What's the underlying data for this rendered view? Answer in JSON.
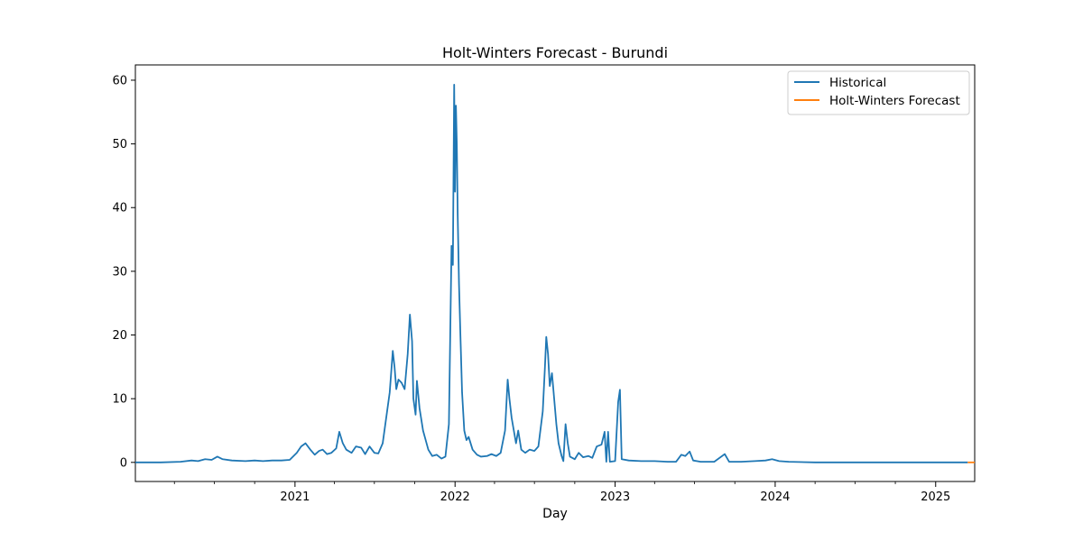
{
  "chart_data": {
    "type": "line",
    "title": "Holt-Winters Forecast - Burundi",
    "xlabel": "Day",
    "ylabel": "",
    "x_ticks": [
      "2021",
      "2022",
      "2023",
      "2024",
      "2025"
    ],
    "x_tick_dates": [
      "2021-01-01",
      "2022-01-01",
      "2023-01-01",
      "2024-01-01",
      "2025-01-01"
    ],
    "y_ticks": [
      0,
      10,
      20,
      30,
      40,
      50,
      60
    ],
    "xlim": [
      "2020-01-03",
      "2025-03-31"
    ],
    "ylim": [
      -3,
      62.4
    ],
    "grid": false,
    "legend_position": "top-right",
    "colors": {
      "historical": "#1f77b4",
      "forecast": "#ff7f0e"
    },
    "series": [
      {
        "name": "Historical",
        "points": [
          [
            "2020-01-03",
            0
          ],
          [
            "2020-03-01",
            0
          ],
          [
            "2020-04-15",
            0.1
          ],
          [
            "2020-05-10",
            0.3
          ],
          [
            "2020-05-25",
            0.2
          ],
          [
            "2020-06-10",
            0.5
          ],
          [
            "2020-06-25",
            0.4
          ],
          [
            "2020-07-08",
            0.9
          ],
          [
            "2020-07-20",
            0.5
          ],
          [
            "2020-08-10",
            0.3
          ],
          [
            "2020-09-10",
            0.2
          ],
          [
            "2020-10-01",
            0.3
          ],
          [
            "2020-10-20",
            0.2
          ],
          [
            "2020-11-10",
            0.3
          ],
          [
            "2020-12-01",
            0.3
          ],
          [
            "2020-12-20",
            0.4
          ],
          [
            "2021-01-05",
            1.5
          ],
          [
            "2021-01-15",
            2.5
          ],
          [
            "2021-01-25",
            3.0
          ],
          [
            "2021-02-05",
            2.0
          ],
          [
            "2021-02-15",
            1.2
          ],
          [
            "2021-02-25",
            1.8
          ],
          [
            "2021-03-05",
            2.0
          ],
          [
            "2021-03-15",
            1.3
          ],
          [
            "2021-03-25",
            1.5
          ],
          [
            "2021-04-05",
            2.2
          ],
          [
            "2021-04-12",
            4.8
          ],
          [
            "2021-04-20",
            3.0
          ],
          [
            "2021-04-28",
            2.0
          ],
          [
            "2021-05-10",
            1.5
          ],
          [
            "2021-05-20",
            2.5
          ],
          [
            "2021-06-01",
            2.3
          ],
          [
            "2021-06-10",
            1.3
          ],
          [
            "2021-06-20",
            2.5
          ],
          [
            "2021-07-01",
            1.5
          ],
          [
            "2021-07-10",
            1.4
          ],
          [
            "2021-07-20",
            3.0
          ],
          [
            "2021-07-28",
            7.0
          ],
          [
            "2021-08-05",
            11.0
          ],
          [
            "2021-08-12",
            17.5
          ],
          [
            "2021-08-16",
            15.0
          ],
          [
            "2021-08-20",
            11.5
          ],
          [
            "2021-08-25",
            13.0
          ],
          [
            "2021-09-01",
            12.5
          ],
          [
            "2021-09-08",
            11.5
          ],
          [
            "2021-09-15",
            17.0
          ],
          [
            "2021-09-20",
            23.2
          ],
          [
            "2021-09-25",
            19.0
          ],
          [
            "2021-09-28",
            10.0
          ],
          [
            "2021-10-03",
            7.5
          ],
          [
            "2021-10-06",
            12.8
          ],
          [
            "2021-10-12",
            8.5
          ],
          [
            "2021-10-20",
            5.0
          ],
          [
            "2021-11-01",
            2.0
          ],
          [
            "2021-11-10",
            1.0
          ],
          [
            "2021-11-20",
            1.2
          ],
          [
            "2021-12-01",
            0.6
          ],
          [
            "2021-12-10",
            0.9
          ],
          [
            "2021-12-18",
            6.0
          ],
          [
            "2021-12-24",
            34.0
          ],
          [
            "2021-12-27",
            31.0
          ],
          [
            "2021-12-30",
            59.3
          ],
          [
            "2022-01-01",
            42.5
          ],
          [
            "2022-01-03",
            56.0
          ],
          [
            "2022-01-05",
            50.0
          ],
          [
            "2022-01-07",
            39.0
          ],
          [
            "2022-01-10",
            28.0
          ],
          [
            "2022-01-13",
            20.5
          ],
          [
            "2022-01-17",
            11.0
          ],
          [
            "2022-01-22",
            5.0
          ],
          [
            "2022-01-27",
            3.5
          ],
          [
            "2022-02-01",
            4.0
          ],
          [
            "2022-02-10",
            2.0
          ],
          [
            "2022-02-20",
            1.2
          ],
          [
            "2022-03-01",
            0.9
          ],
          [
            "2022-03-15",
            1.0
          ],
          [
            "2022-03-25",
            1.3
          ],
          [
            "2022-04-05",
            1.0
          ],
          [
            "2022-04-15",
            1.5
          ],
          [
            "2022-04-25",
            5.0
          ],
          [
            "2022-05-01",
            13.0
          ],
          [
            "2022-05-05",
            10.0
          ],
          [
            "2022-05-10",
            7.0
          ],
          [
            "2022-05-15",
            5.0
          ],
          [
            "2022-05-20",
            3.0
          ],
          [
            "2022-05-25",
            5.0
          ],
          [
            "2022-06-01",
            2.0
          ],
          [
            "2022-06-10",
            1.5
          ],
          [
            "2022-06-20",
            2.0
          ],
          [
            "2022-07-01",
            1.8
          ],
          [
            "2022-07-10",
            2.5
          ],
          [
            "2022-07-20",
            8.0
          ],
          [
            "2022-07-25",
            15.0
          ],
          [
            "2022-07-28",
            19.7
          ],
          [
            "2022-08-01",
            17.0
          ],
          [
            "2022-08-05",
            12.0
          ],
          [
            "2022-08-10",
            14.0
          ],
          [
            "2022-08-15",
            10.0
          ],
          [
            "2022-08-20",
            6.0
          ],
          [
            "2022-08-25",
            3.0
          ],
          [
            "2022-09-01",
            1.0
          ],
          [
            "2022-09-05",
            0.2
          ],
          [
            "2022-09-10",
            6.0
          ],
          [
            "2022-09-15",
            3.0
          ],
          [
            "2022-09-20",
            0.9
          ],
          [
            "2022-10-01",
            0.5
          ],
          [
            "2022-10-10",
            1.5
          ],
          [
            "2022-10-20",
            0.8
          ],
          [
            "2022-11-01",
            1.0
          ],
          [
            "2022-11-10",
            0.7
          ],
          [
            "2022-11-20",
            2.5
          ],
          [
            "2022-12-01",
            2.8
          ],
          [
            "2022-12-08",
            4.8
          ],
          [
            "2022-12-12",
            0.1
          ],
          [
            "2022-12-16",
            4.8
          ],
          [
            "2022-12-20",
            0.1
          ],
          [
            "2023-01-01",
            0.2
          ],
          [
            "2023-01-08",
            9.5
          ],
          [
            "2023-01-12",
            11.4
          ],
          [
            "2023-01-16",
            0.5
          ],
          [
            "2023-02-01",
            0.3
          ],
          [
            "2023-03-01",
            0.2
          ],
          [
            "2023-04-01",
            0.2
          ],
          [
            "2023-05-01",
            0.1
          ],
          [
            "2023-05-20",
            0.1
          ],
          [
            "2023-06-01",
            1.2
          ],
          [
            "2023-06-10",
            1.0
          ],
          [
            "2023-06-20",
            1.7
          ],
          [
            "2023-06-28",
            0.3
          ],
          [
            "2023-07-15",
            0.1
          ],
          [
            "2023-08-15",
            0.1
          ],
          [
            "2023-09-08",
            1.3
          ],
          [
            "2023-09-18",
            0.1
          ],
          [
            "2023-10-15",
            0.1
          ],
          [
            "2023-11-15",
            0.2
          ],
          [
            "2023-12-10",
            0.3
          ],
          [
            "2023-12-25",
            0.5
          ],
          [
            "2024-01-10",
            0.2
          ],
          [
            "2024-02-01",
            0.1
          ],
          [
            "2024-04-01",
            0
          ],
          [
            "2025-03-15",
            0
          ]
        ]
      },
      {
        "name": "Holt-Winters Forecast",
        "points": [
          [
            "2025-03-15",
            0
          ],
          [
            "2025-03-31",
            0
          ]
        ]
      }
    ]
  }
}
